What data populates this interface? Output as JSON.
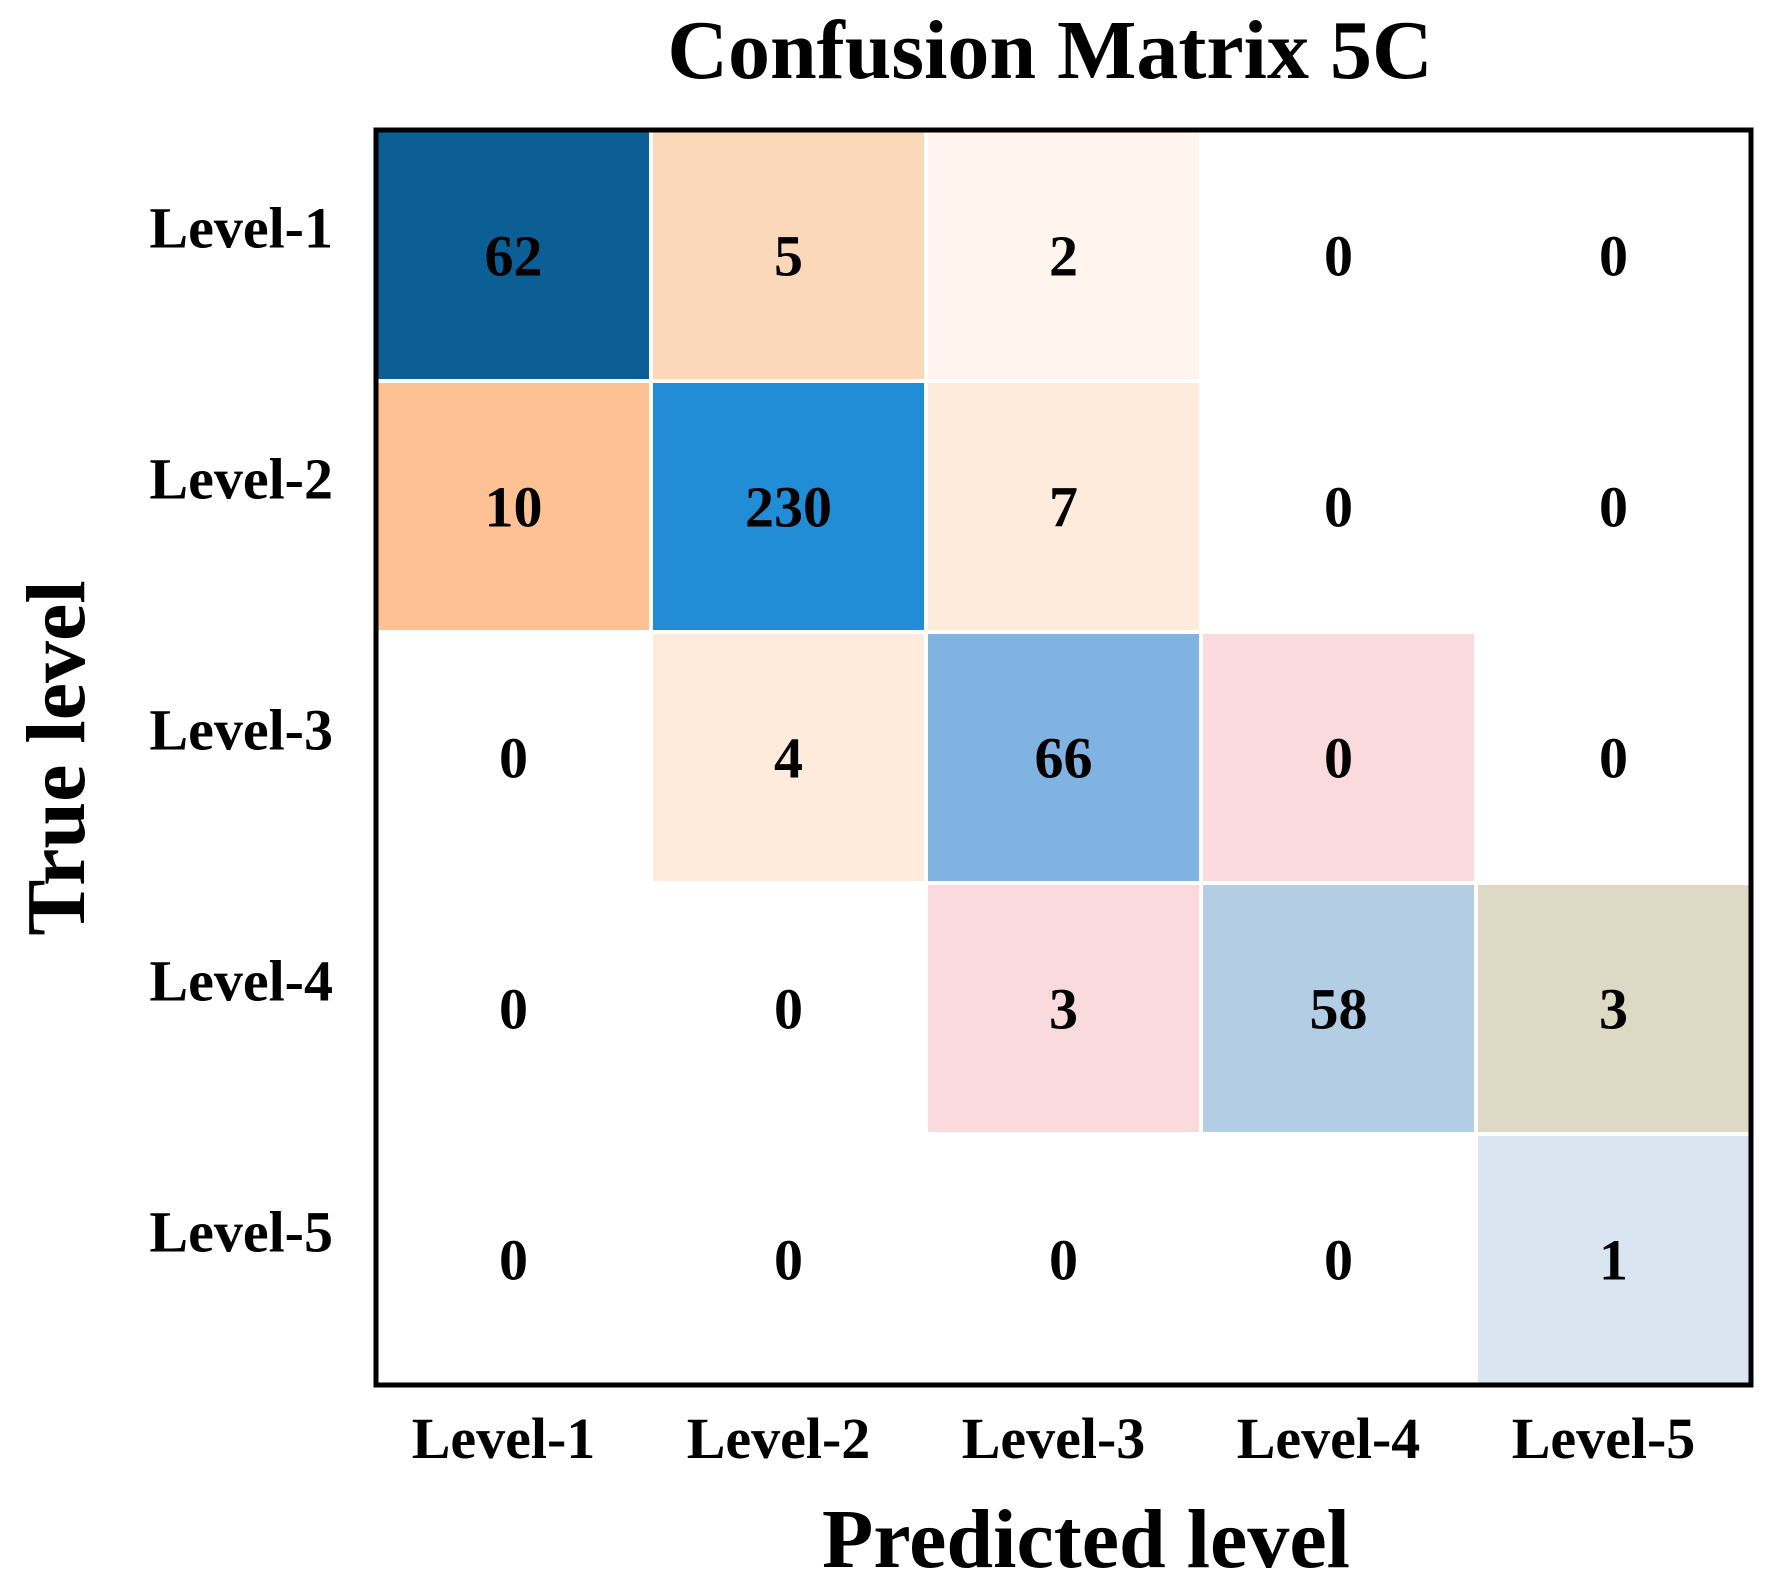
{
  "chart_data": {
    "type": "heatmap",
    "title": "Confusion Matrix 5C",
    "xlabel": "Predicted level",
    "ylabel": "True level",
    "x_categories": [
      "Level-1",
      "Level-2",
      "Level-3",
      "Level-4",
      "Level-5"
    ],
    "y_categories": [
      "Level-1",
      "Level-2",
      "Level-3",
      "Level-4",
      "Level-5"
    ],
    "values": [
      [
        62,
        5,
        2,
        0,
        0
      ],
      [
        10,
        230,
        7,
        0,
        0
      ],
      [
        0,
        4,
        66,
        0,
        0
      ],
      [
        0,
        0,
        3,
        58,
        3
      ],
      [
        0,
        0,
        0,
        0,
        1
      ]
    ],
    "cell_colors": [
      [
        "#0b5f95",
        "#fbd8ba",
        "#fff5ee",
        "#ffffff",
        "#ffffff"
      ],
      [
        "#fdc193",
        "#218dd6",
        "#feebdb",
        "#ffffff",
        "#ffffff"
      ],
      [
        "#ffffff",
        "#feebdb",
        "#81b3e2",
        "#fadadd",
        "#ffffff"
      ],
      [
        "#ffffff",
        "#ffffff",
        "#fadadd",
        "#b3cde4",
        "#ddd9c5"
      ],
      [
        "#ffffff",
        "#ffffff",
        "#ffffff",
        "#ffffff",
        "#d9e6f2"
      ]
    ],
    "grid": false,
    "legend": "none"
  }
}
